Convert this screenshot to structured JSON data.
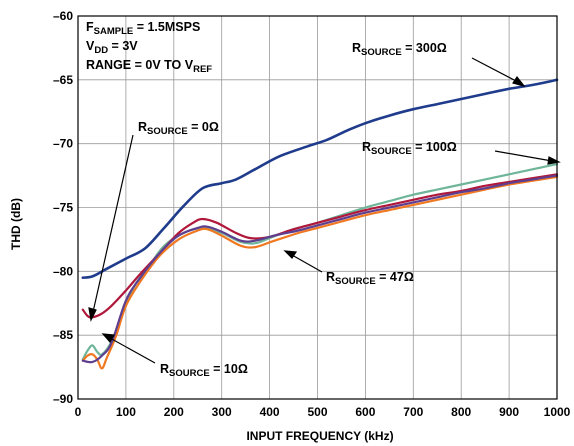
{
  "chart_data": {
    "type": "line",
    "xlabel": "INPUT FREQUENCY (kHz)",
    "ylabel": "THD (dB)",
    "xlim": [
      0,
      1000
    ],
    "ylim": [
      -90,
      -60
    ],
    "x_ticks": [
      "0",
      "100",
      "200",
      "300",
      "400",
      "500",
      "600",
      "700",
      "800",
      "900",
      "1000"
    ],
    "y_ticks": [
      "–60",
      "–65",
      "–70",
      "–75",
      "–80",
      "–85",
      "–90"
    ],
    "grid": true,
    "conditions": {
      "line1": {
        "main": "F",
        "sub": "SAMPLE",
        "rest": " = 1.5MSPS"
      },
      "line2": {
        "main": "V",
        "sub": "DD",
        "rest": " = 3V"
      },
      "line3": {
        "main": "RANGE = 0V TO V",
        "sub": "REF",
        "rest": ""
      }
    },
    "series": [
      {
        "name": "RSOURCE = 300Ω",
        "color": "#1f3b8c",
        "points": [
          [
            10,
            -80.5
          ],
          [
            30,
            -80.4
          ],
          [
            60,
            -79.8
          ],
          [
            100,
            -79.0
          ],
          [
            140,
            -78.2
          ],
          [
            180,
            -76.6
          ],
          [
            220,
            -74.9
          ],
          [
            260,
            -73.5
          ],
          [
            300,
            -73.1
          ],
          [
            330,
            -72.8
          ],
          [
            370,
            -72.0
          ],
          [
            420,
            -71.0
          ],
          [
            480,
            -70.2
          ],
          [
            520,
            -69.7
          ],
          [
            560,
            -69.0
          ],
          [
            600,
            -68.4
          ],
          [
            650,
            -67.8
          ],
          [
            700,
            -67.3
          ],
          [
            750,
            -66.9
          ],
          [
            800,
            -66.5
          ],
          [
            850,
            -66.1
          ],
          [
            900,
            -65.7
          ],
          [
            950,
            -65.4
          ],
          [
            1000,
            -65.0
          ]
        ]
      },
      {
        "name": "RSOURCE = 100Ω",
        "color": "#6fb59a",
        "points": [
          [
            10,
            -86.9
          ],
          [
            20,
            -86.2
          ],
          [
            30,
            -85.8
          ],
          [
            40,
            -86.3
          ],
          [
            50,
            -86.5
          ],
          [
            70,
            -85.5
          ],
          [
            100,
            -82.7
          ],
          [
            120,
            -81.0
          ],
          [
            150,
            -79.5
          ],
          [
            180,
            -78.0
          ],
          [
            220,
            -77.0
          ],
          [
            260,
            -76.6
          ],
          [
            300,
            -77.0
          ],
          [
            340,
            -77.7
          ],
          [
            370,
            -77.8
          ],
          [
            400,
            -77.4
          ],
          [
            450,
            -76.7
          ],
          [
            500,
            -76.2
          ],
          [
            550,
            -75.6
          ],
          [
            600,
            -75.0
          ],
          [
            650,
            -74.5
          ],
          [
            700,
            -74.0
          ],
          [
            750,
            -73.6
          ],
          [
            800,
            -73.2
          ],
          [
            850,
            -72.8
          ],
          [
            900,
            -72.4
          ],
          [
            950,
            -72.0
          ],
          [
            1000,
            -71.6
          ]
        ]
      },
      {
        "name": "RSOURCE = 0Ω",
        "color": "#b0173a",
        "points": [
          [
            10,
            -83.0
          ],
          [
            20,
            -83.5
          ],
          [
            30,
            -83.6
          ],
          [
            50,
            -83.3
          ],
          [
            70,
            -82.7
          ],
          [
            100,
            -81.5
          ],
          [
            130,
            -80.2
          ],
          [
            170,
            -78.6
          ],
          [
            210,
            -77.0
          ],
          [
            240,
            -76.2
          ],
          [
            260,
            -75.9
          ],
          [
            290,
            -76.2
          ],
          [
            330,
            -77.0
          ],
          [
            360,
            -77.4
          ],
          [
            400,
            -77.3
          ],
          [
            450,
            -76.7
          ],
          [
            500,
            -76.2
          ],
          [
            550,
            -75.7
          ],
          [
            600,
            -75.2
          ],
          [
            650,
            -74.8
          ],
          [
            700,
            -74.4
          ],
          [
            750,
            -74.0
          ],
          [
            800,
            -73.7
          ],
          [
            850,
            -73.3
          ],
          [
            900,
            -73.0
          ],
          [
            950,
            -72.7
          ],
          [
            1000,
            -72.4
          ]
        ]
      },
      {
        "name": "RSOURCE = 47Ω",
        "color": "#f07820",
        "points": [
          [
            10,
            -87.0
          ],
          [
            20,
            -86.6
          ],
          [
            30,
            -86.5
          ],
          [
            40,
            -86.9
          ],
          [
            50,
            -87.6
          ],
          [
            60,
            -86.8
          ],
          [
            80,
            -85.0
          ],
          [
            100,
            -82.7
          ],
          [
            130,
            -80.8
          ],
          [
            170,
            -78.8
          ],
          [
            210,
            -77.5
          ],
          [
            250,
            -76.8
          ],
          [
            270,
            -76.7
          ],
          [
            300,
            -77.2
          ],
          [
            340,
            -78.0
          ],
          [
            370,
            -78.1
          ],
          [
            410,
            -77.6
          ],
          [
            460,
            -77.0
          ],
          [
            500,
            -76.6
          ],
          [
            550,
            -76.1
          ],
          [
            600,
            -75.6
          ],
          [
            650,
            -75.2
          ],
          [
            700,
            -74.8
          ],
          [
            750,
            -74.4
          ],
          [
            800,
            -74.0
          ],
          [
            850,
            -73.6
          ],
          [
            900,
            -73.2
          ],
          [
            950,
            -72.9
          ],
          [
            1000,
            -72.6
          ]
        ]
      },
      {
        "name": "RSOURCE = 10Ω",
        "color": "#5e3f8f",
        "points": [
          [
            10,
            -87.0
          ],
          [
            30,
            -87.1
          ],
          [
            50,
            -86.6
          ],
          [
            70,
            -85.6
          ],
          [
            100,
            -82.3
          ],
          [
            130,
            -80.5
          ],
          [
            170,
            -78.6
          ],
          [
            210,
            -77.2
          ],
          [
            250,
            -76.6
          ],
          [
            270,
            -76.5
          ],
          [
            300,
            -76.9
          ],
          [
            340,
            -77.6
          ],
          [
            370,
            -77.6
          ],
          [
            410,
            -77.2
          ],
          [
            460,
            -76.8
          ],
          [
            500,
            -76.4
          ],
          [
            550,
            -75.9
          ],
          [
            600,
            -75.4
          ],
          [
            650,
            -75.0
          ],
          [
            700,
            -74.6
          ],
          [
            750,
            -74.2
          ],
          [
            800,
            -73.8
          ],
          [
            850,
            -73.5
          ],
          [
            900,
            -73.1
          ],
          [
            950,
            -72.8
          ],
          [
            1000,
            -72.5
          ]
        ]
      }
    ],
    "annotations": [
      {
        "main": "R",
        "sub": "SOURCE",
        "rest": " = 300Ω"
      },
      {
        "main": "R",
        "sub": "SOURCE",
        "rest": " = 0Ω"
      },
      {
        "main": "R",
        "sub": "SOURCE",
        "rest": " = 100Ω"
      },
      {
        "main": "R",
        "sub": "SOURCE",
        "rest": " = 47Ω"
      },
      {
        "main": "R",
        "sub": "SOURCE",
        "rest": " = 10Ω"
      }
    ]
  }
}
